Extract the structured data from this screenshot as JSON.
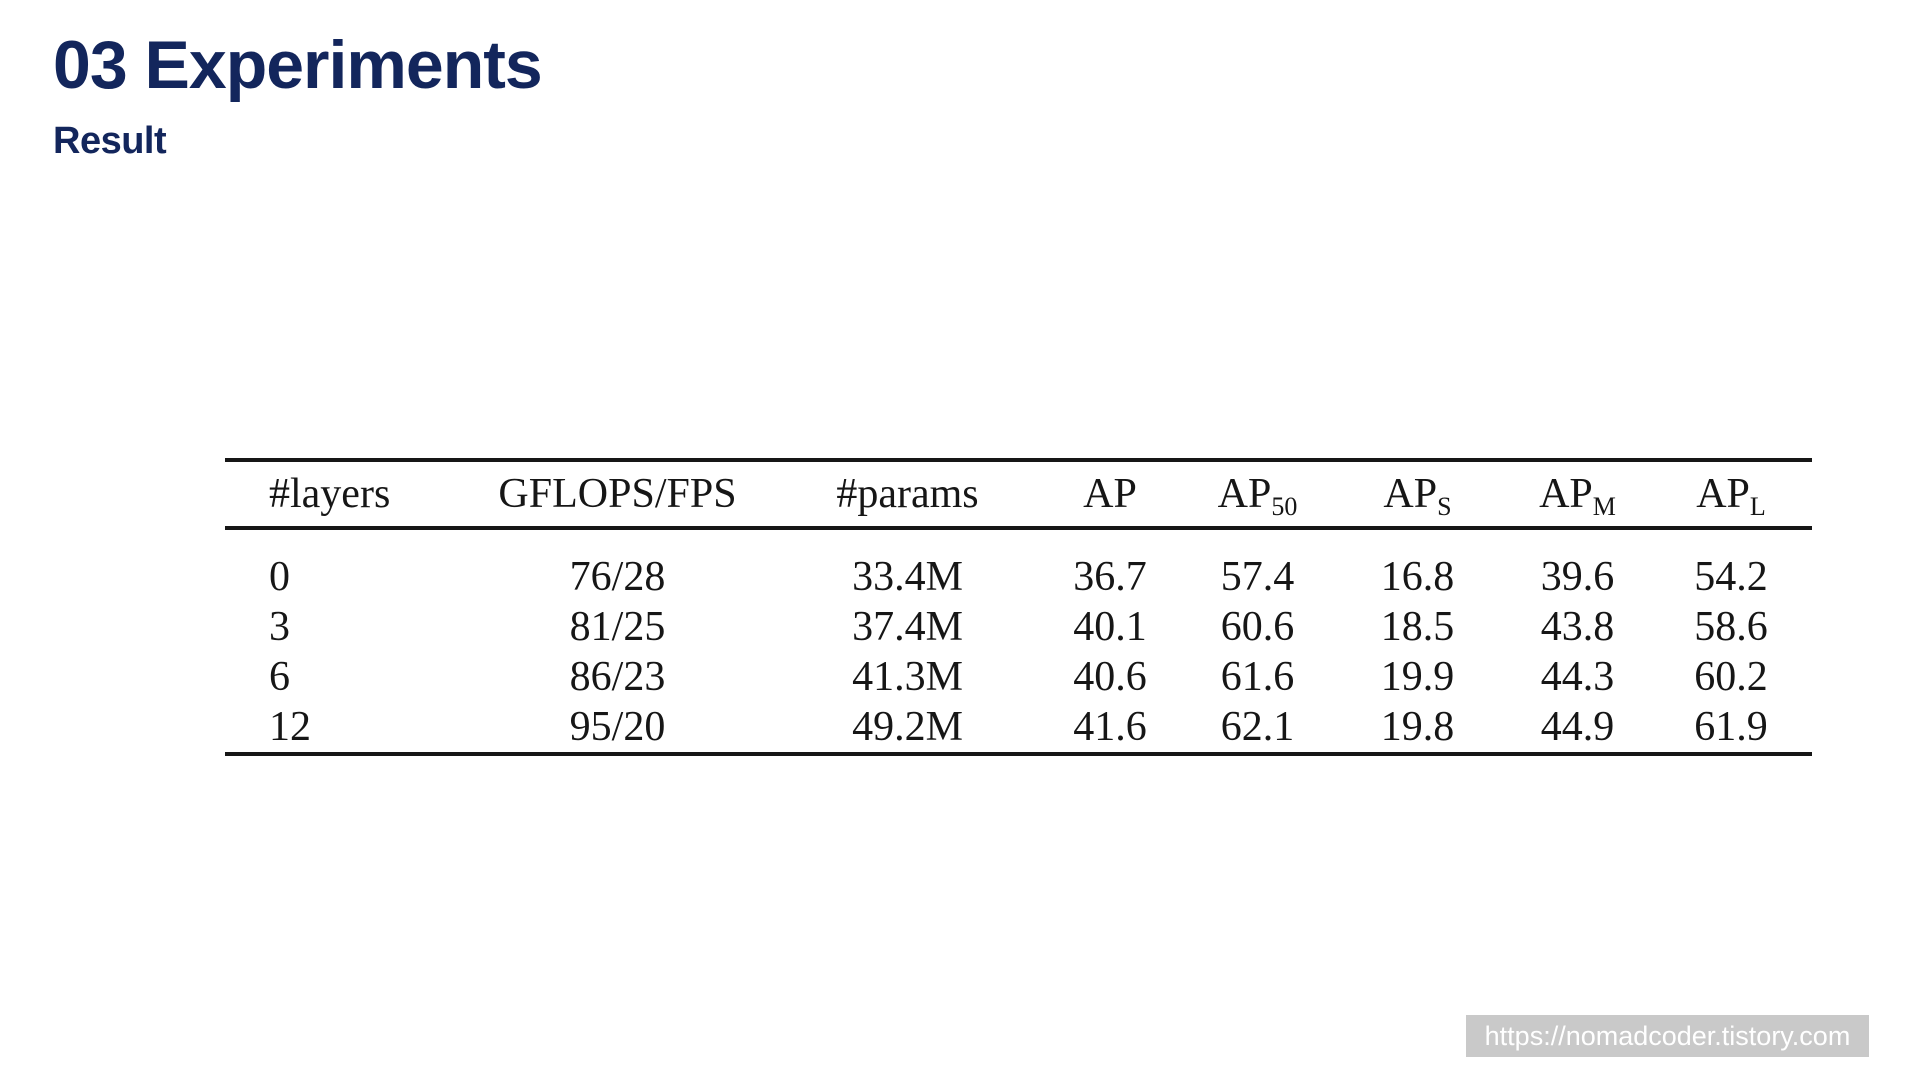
{
  "page": {
    "title": "03 Experiments",
    "subtitle": "Result"
  },
  "table": {
    "columns": [
      {
        "label": "#layers",
        "sub": ""
      },
      {
        "label": "GFLOPS/FPS",
        "sub": ""
      },
      {
        "label": "#params",
        "sub": ""
      },
      {
        "label": "AP",
        "sub": ""
      },
      {
        "label": "AP",
        "sub": "50"
      },
      {
        "label": "AP",
        "sub": "S"
      },
      {
        "label": "AP",
        "sub": "M"
      },
      {
        "label": "AP",
        "sub": "L"
      }
    ],
    "rows": [
      [
        "0",
        "76/28",
        "33.4M",
        "36.7",
        "57.4",
        "16.8",
        "39.6",
        "54.2"
      ],
      [
        "3",
        "81/25",
        "37.4M",
        "40.1",
        "60.6",
        "18.5",
        "43.8",
        "58.6"
      ],
      [
        "6",
        "86/23",
        "41.3M",
        "40.6",
        "61.6",
        "19.9",
        "44.3",
        "60.2"
      ],
      [
        "12",
        "95/20",
        "49.2M",
        "41.6",
        "62.1",
        "19.8",
        "44.9",
        "61.9"
      ]
    ]
  },
  "footer": {
    "url": "https://nomadcoder.tistory.com"
  },
  "colors": {
    "accent_navy": "#13265c",
    "rule": "#161616",
    "badge_bg": "#c9c9c9",
    "badge_text": "#ffffff"
  }
}
